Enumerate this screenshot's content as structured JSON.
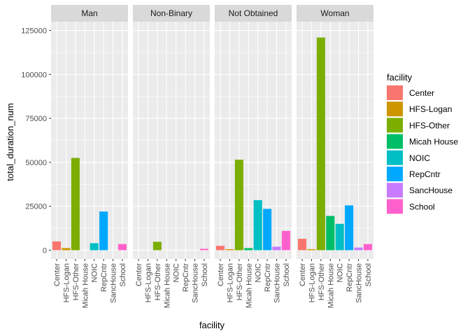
{
  "chart_data": {
    "type": "bar",
    "facet_by": "gender",
    "xlabel": "facility",
    "ylabel": "total_duration_num",
    "ylim": [
      -5000,
      130000
    ],
    "yticks": [
      0,
      25000,
      50000,
      75000,
      100000,
      125000
    ],
    "ytick_labels": [
      "0",
      "25000",
      "50000",
      "75000",
      "100000",
      "125000"
    ],
    "categories": [
      "Center",
      "HFS-Logan",
      "HFS-Other",
      "Micah House",
      "NOIC",
      "RepCntr",
      "SancHouse",
      "School"
    ],
    "colors": [
      "#F8766D",
      "#CD9600",
      "#7CAE00",
      "#00BE67",
      "#00BFC4",
      "#00A9FF",
      "#C77CFF",
      "#FF61CC"
    ],
    "panels": [
      {
        "label": "Man",
        "values": [
          5000,
          1200,
          52500,
          0,
          4000,
          22000,
          0,
          3500
        ]
      },
      {
        "label": "Non-Binary",
        "values": [
          0,
          0,
          4800,
          0,
          0,
          0,
          0,
          800
        ]
      },
      {
        "label": "Not Obtained",
        "values": [
          2500,
          600,
          51500,
          1200,
          28500,
          23500,
          2000,
          11000
        ]
      },
      {
        "label": "Woman",
        "values": [
          6500,
          600,
          121000,
          19500,
          15000,
          25500,
          1500,
          3500
        ]
      }
    ],
    "legend": {
      "title": "facility",
      "position": "right",
      "items": [
        "Center",
        "HFS-Logan",
        "HFS-Other",
        "Micah House",
        "NOIC",
        "RepCntr",
        "SancHouse",
        "School"
      ]
    },
    "grid": true,
    "panel_background": "#EBEBEB",
    "strip_background": "#D9D9D9"
  }
}
